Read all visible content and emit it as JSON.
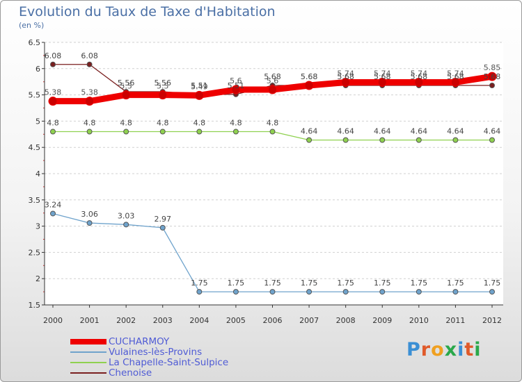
{
  "title": "Evolution du Taux de Taxe d'Habitation",
  "unit_label": "(en %)",
  "logo": {
    "text": "Proxiti",
    "colors": [
      "#3b8fd4",
      "#e05a2a",
      "#f0a020",
      "#2aa84a",
      "#3b8fd4",
      "#e05a2a",
      "#2aa84a"
    ]
  },
  "chart_data": {
    "type": "line",
    "title": "Evolution du Taux de Taxe d'Habitation",
    "ylabel": "(en %)",
    "xlabel": "",
    "x": [
      "2000",
      "2001",
      "2002",
      "2003",
      "2004",
      "2005",
      "2006",
      "2007",
      "2008",
      "2009",
      "2010",
      "2011",
      "2012"
    ],
    "ylim": [
      1.5,
      6.5
    ],
    "yticks": [
      1.5,
      2,
      2.5,
      3,
      3.5,
      4,
      4.5,
      5,
      5.5,
      6,
      6.5
    ],
    "ytick_labels": [
      "1.5",
      "2",
      "2.5",
      "3",
      "3.5",
      "4",
      "4.5",
      "5",
      "5.5",
      "6",
      "6.5"
    ],
    "grid": "horizontal",
    "legend_position": "bottom-left",
    "series": [
      {
        "name": "Chenoise",
        "color": "#7a1f1f",
        "values": [
          6.08,
          6.08,
          5.56,
          5.56,
          5.51,
          5.51,
          5.68,
          5.68,
          5.68,
          5.68,
          5.68,
          5.68,
          5.68
        ],
        "labels": [
          "6.08",
          "6.08",
          "5.56",
          "5.56",
          "5.51",
          "5.51",
          "5.68",
          "5.68",
          "5.68",
          "5.68",
          "5.68",
          "5.68",
          "5.68"
        ]
      },
      {
        "name": "La Chapelle-Saint-Sulpice",
        "color": "#8fd14f",
        "values": [
          4.8,
          4.8,
          4.8,
          4.8,
          4.8,
          4.8,
          4.8,
          4.64,
          4.64,
          4.64,
          4.64,
          4.64,
          4.64
        ],
        "labels": [
          "4.8",
          "4.8",
          "4.8",
          "4.8",
          "4.8",
          "4.8",
          "4.8",
          "4.64",
          "4.64",
          "4.64",
          "4.64",
          "4.64",
          "4.64"
        ]
      },
      {
        "name": "Vulaines-lès-Provins",
        "color": "#6fa3cc",
        "values": [
          3.24,
          3.06,
          3.03,
          2.97,
          1.75,
          1.75,
          1.75,
          1.75,
          1.75,
          1.75,
          1.75,
          1.75,
          1.75
        ],
        "labels": [
          "3.24",
          "3.06",
          "3.03",
          "2.97",
          "1.75",
          "1.75",
          "1.75",
          "1.75",
          "1.75",
          "1.75",
          "1.75",
          "1.75",
          "1.75"
        ]
      },
      {
        "name": "CUCHARMOY",
        "color": "#ee0000",
        "values": [
          5.38,
          5.38,
          5.5,
          5.5,
          5.49,
          5.6,
          5.6,
          5.68,
          5.74,
          5.74,
          5.74,
          5.74,
          5.85
        ],
        "labels": [
          "5.38",
          "5.38",
          "5.5",
          "5.5",
          "5.49",
          "5.6",
          "5.6",
          "5.68",
          "5.74",
          "5.74",
          "5.74",
          "5.74",
          "5.85"
        ]
      }
    ],
    "legend": [
      "CUCHARMOY",
      "Vulaines-lès-Provins",
      "La Chapelle-Saint-Sulpice",
      "Chenoise"
    ]
  }
}
